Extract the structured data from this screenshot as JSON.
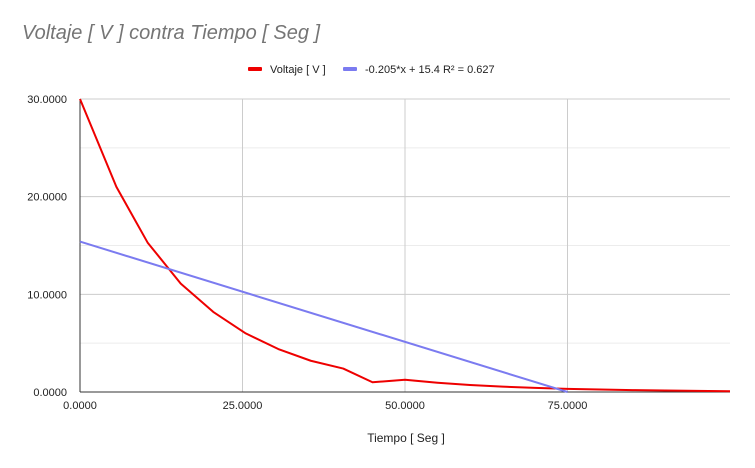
{
  "chart_data": {
    "type": "line",
    "title": "Voltaje [ V ] contra Tiempo [ Seg ]",
    "xlabel": "Tiempo [ Seg ]",
    "ylabel": "",
    "xlim": [
      0,
      100
    ],
    "ylim": [
      0,
      30
    ],
    "xticks": [
      0,
      25,
      50,
      75
    ],
    "xtick_labels": [
      "0.0000",
      "25.0000",
      "50.0000",
      "75.0000"
    ],
    "yticks": [
      0,
      10,
      20,
      30
    ],
    "ytick_labels": [
      "0.0000",
      "10.0000",
      "20.0000",
      "30.0000"
    ],
    "grid": true,
    "legend_position": "top-center",
    "series": [
      {
        "name": "Voltaje [ V ]",
        "color": "#ee0000",
        "x": [
          0,
          5.6,
          10.4,
          15.5,
          20.5,
          25.5,
          30.5,
          35.5,
          40.5,
          45,
          50,
          55,
          60,
          65,
          70,
          75,
          80,
          85,
          90,
          95,
          100
        ],
        "y": [
          30,
          21,
          15.3,
          11.1,
          8.2,
          6.0,
          4.4,
          3.2,
          2.4,
          1.0,
          1.25,
          0.95,
          0.72,
          0.55,
          0.42,
          0.32,
          0.25,
          0.19,
          0.15,
          0.11,
          0.08
        ]
      },
      {
        "name": "-0.205*x + 15.4 R² = 0.627",
        "color": "#7b7bf0",
        "x": [
          0,
          75
        ],
        "y": [
          15.4,
          0.0
        ]
      }
    ]
  }
}
